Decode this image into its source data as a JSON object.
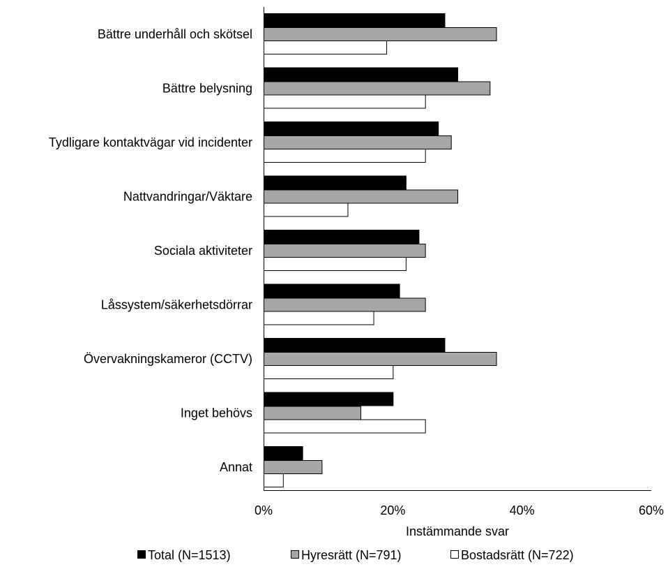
{
  "chart_data": {
    "type": "bar",
    "orientation": "horizontal",
    "categories": [
      "Bättre underhåll och skötsel",
      "Bättre belysning",
      "Tydligare kontaktvägar vid incidenter",
      "Nattvandringar/Väktare",
      "Sociala aktiviteter",
      "Låssystem/säkerhetsdörrar",
      "Övervakningskameror (CCTV)",
      "Inget behövs",
      "Annat"
    ],
    "series": [
      {
        "name": "Total (N=1513)",
        "color": "#000000",
        "values": [
          28,
          30,
          27,
          22,
          24,
          21,
          28,
          20,
          6
        ]
      },
      {
        "name": "Hyresrätt (N=791)",
        "color": "#a6a6a6",
        "values": [
          36,
          35,
          29,
          30,
          25,
          25,
          36,
          15,
          9
        ]
      },
      {
        "name": "Bostadsrätt (N=722)",
        "color": "#ffffff",
        "values": [
          19,
          25,
          25,
          13,
          22,
          17,
          20,
          25,
          3
        ]
      }
    ],
    "xlim": [
      0,
      60
    ],
    "xticks": [
      0,
      20,
      40,
      60
    ],
    "tick_labels": [
      "0%",
      "20%",
      "40%",
      "60%"
    ],
    "xlabel": "Instämmande svar",
    "ylabel": "",
    "title": "",
    "grid": false,
    "legend_position": "bottom",
    "legend": [
      {
        "symbol": "■",
        "text": "Total (N=1513)",
        "color": "#000000"
      },
      {
        "symbol": "■",
        "text": "Hyresrätt (N=791)",
        "color": "#a6a6a6"
      },
      {
        "symbol": "□",
        "text": "Bostadsrätt (N=722)",
        "color": "#ffffff"
      }
    ]
  }
}
